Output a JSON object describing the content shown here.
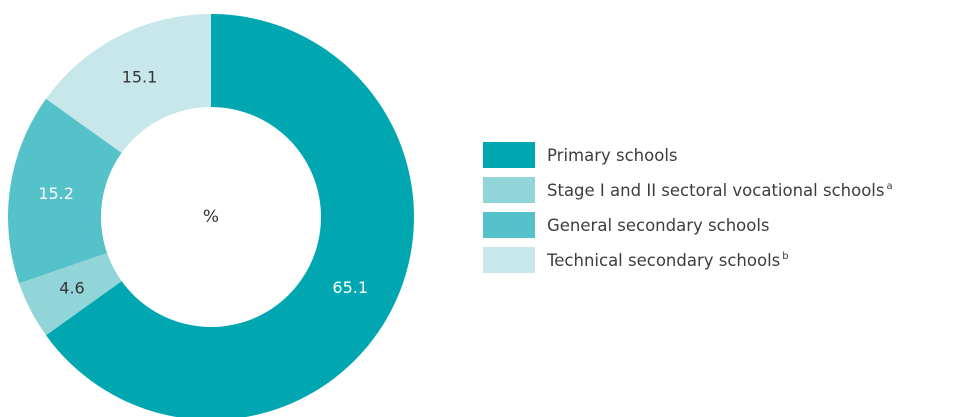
{
  "chart_data": {
    "type": "pie",
    "center_label": "%",
    "slices": [
      {
        "label": "Primary schools",
        "footnote": "",
        "value": 65.1,
        "value_label": "65.1",
        "color": "#00a7b1",
        "label_color": "#ffffff"
      },
      {
        "label": "Stage I and II sectoral vocational schools",
        "footnote": "a",
        "value": 4.6,
        "value_label": "4.6",
        "color": "#92d5d9",
        "label_color": "#333333"
      },
      {
        "label": "General secondary schools",
        "footnote": "",
        "value": 15.2,
        "value_label": "15.2",
        "color": "#55c1c9",
        "label_color": "#ffffff"
      },
      {
        "label": "Technical secondary schools",
        "footnote": "b",
        "value": 15.1,
        "value_label": "15.1",
        "color": "#c7e7ea",
        "label_color": "#333333"
      }
    ]
  }
}
